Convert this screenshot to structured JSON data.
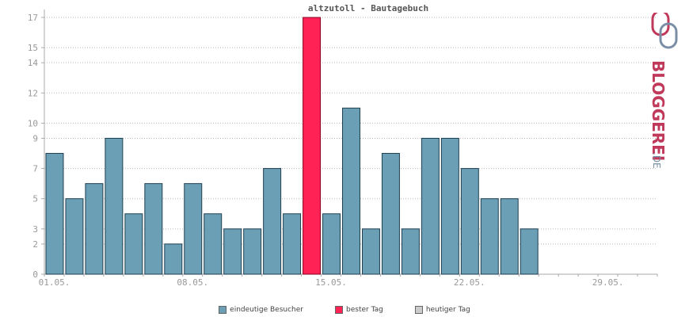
{
  "chart_data": {
    "type": "bar",
    "title": "altzutoll - Bautagebuch",
    "x_tick_labels": [
      "01.05.",
      "08.05.",
      "15.05.",
      "22.05.",
      "29.05."
    ],
    "y_tick_labels": [
      "0",
      "2",
      "3",
      "5",
      "7",
      "9",
      "10",
      "12",
      "14",
      "15",
      "17"
    ],
    "ylim": [
      0,
      17
    ],
    "grid": true,
    "values": [
      8,
      5,
      6,
      9,
      4,
      6,
      2,
      6,
      4,
      3,
      3,
      7,
      4,
      17,
      4,
      11,
      3,
      8,
      3,
      9,
      9,
      7,
      5,
      5,
      3
    ],
    "best_day_index": 13,
    "series": [
      {
        "name": "eindeutige Besucher",
        "color": "#6a9fb5"
      },
      {
        "name": "bester Tag",
        "color": "#ff2255"
      },
      {
        "name": "heutiger Tag",
        "color": "#cccccc"
      }
    ],
    "legend_position": "bottom"
  },
  "logo": {
    "text": "BLOGGEREI",
    "suffix": ".DE",
    "color_main": "#c0395a",
    "color_secondary": "#7a8fa6"
  }
}
